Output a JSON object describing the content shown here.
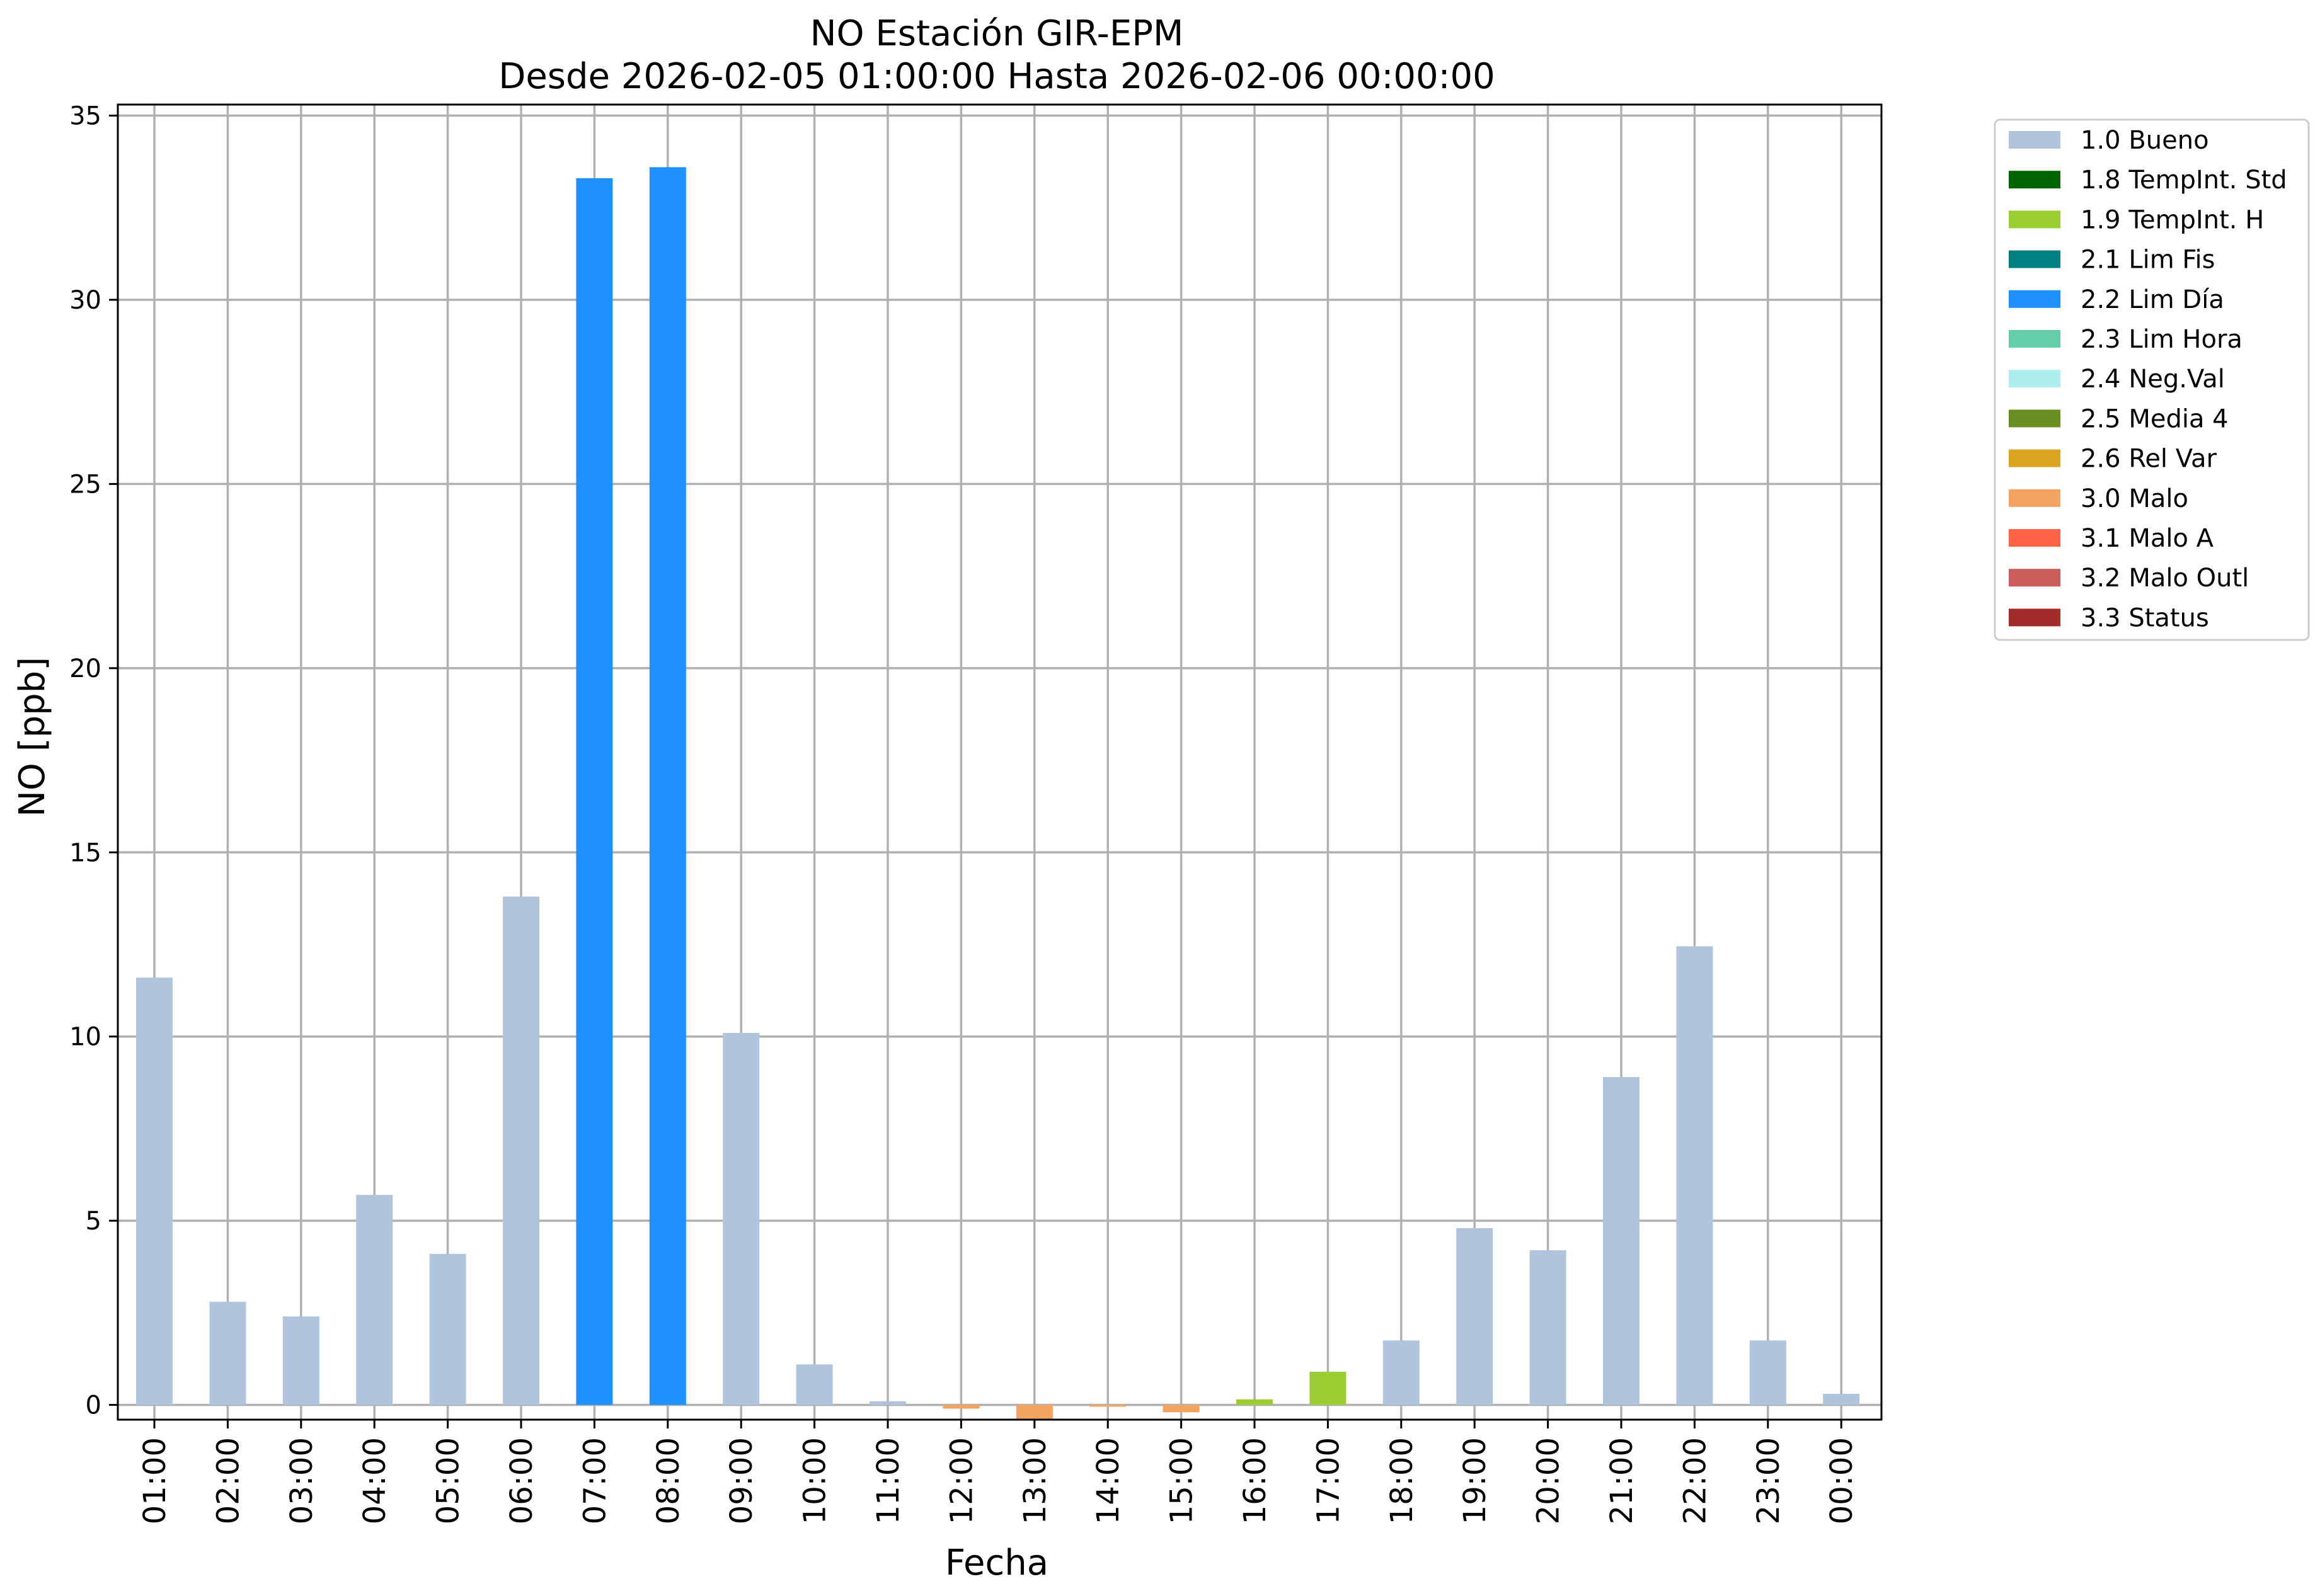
{
  "chart_data": {
    "type": "bar",
    "title": "NO Estación GIR-EPM",
    "subtitle": "Desde 2026-02-05 01:00:00 Hasta 2026-02-06 00:00:00",
    "xlabel": "Fecha",
    "ylabel": "NO [ppb]",
    "ylim": [
      -0.4,
      35.3
    ],
    "yticks": [
      "0",
      "5",
      "10",
      "15",
      "20",
      "25",
      "30",
      "35"
    ],
    "grid": true,
    "legend_position": "outside-top-right",
    "categories": [
      "01:00",
      "02:00",
      "03:00",
      "04:00",
      "05:00",
      "06:00",
      "07:00",
      "08:00",
      "09:00",
      "10:00",
      "11:00",
      "12:00",
      "13:00",
      "14:00",
      "15:00",
      "16:00",
      "17:00",
      "18:00",
      "19:00",
      "20:00",
      "21:00",
      "22:00",
      "23:00",
      "00:00"
    ],
    "values": [
      11.6,
      2.8,
      2.4,
      5.7,
      4.1,
      13.8,
      33.3,
      33.6,
      10.1,
      1.1,
      0.1,
      -0.1,
      -0.4,
      -0.05,
      -0.2,
      0.15,
      0.9,
      1.75,
      4.8,
      4.2,
      8.9,
      12.45,
      1.75,
      0.3
    ],
    "flags": [
      "1.0 Bueno",
      "1.0 Bueno",
      "1.0 Bueno",
      "1.0 Bueno",
      "1.0 Bueno",
      "1.0 Bueno",
      "2.2 Lim Día",
      "2.2 Lim Día",
      "1.0 Bueno",
      "1.0 Bueno",
      "1.0 Bueno",
      "3.0 Malo",
      "3.0 Malo",
      "3.0 Malo",
      "3.0 Malo",
      "1.9 TempInt. H",
      "1.9 TempInt. H",
      "1.0 Bueno",
      "1.0 Bueno",
      "1.0 Bueno",
      "1.0 Bueno",
      "1.0 Bueno",
      "1.0 Bueno",
      "1.0 Bueno"
    ],
    "legend": [
      {
        "label": "1.0 Bueno",
        "color": "#b0c4de"
      },
      {
        "label": "1.8 TempInt. Std",
        "color": "#006400"
      },
      {
        "label": "1.9 TempInt. H",
        "color": "#9acd32"
      },
      {
        "label": "2.1 Lim Fis",
        "color": "#008080"
      },
      {
        "label": "2.2 Lim Día",
        "color": "#1e90ff"
      },
      {
        "label": "2.3 Lim Hora",
        "color": "#66cdaa"
      },
      {
        "label": "2.4 Neg.Val",
        "color": "#afeeee"
      },
      {
        "label": "2.5 Media 4",
        "color": "#6b8e23"
      },
      {
        "label": "2.6 Rel Var",
        "color": "#daa520"
      },
      {
        "label": "3.0 Malo",
        "color": "#f4a460"
      },
      {
        "label": "3.1 Malo A",
        "color": "#ff6347"
      },
      {
        "label": "3.2 Malo Outl",
        "color": "#cd5c5c"
      },
      {
        "label": "3.3 Status",
        "color": "#a52a2a"
      }
    ]
  }
}
